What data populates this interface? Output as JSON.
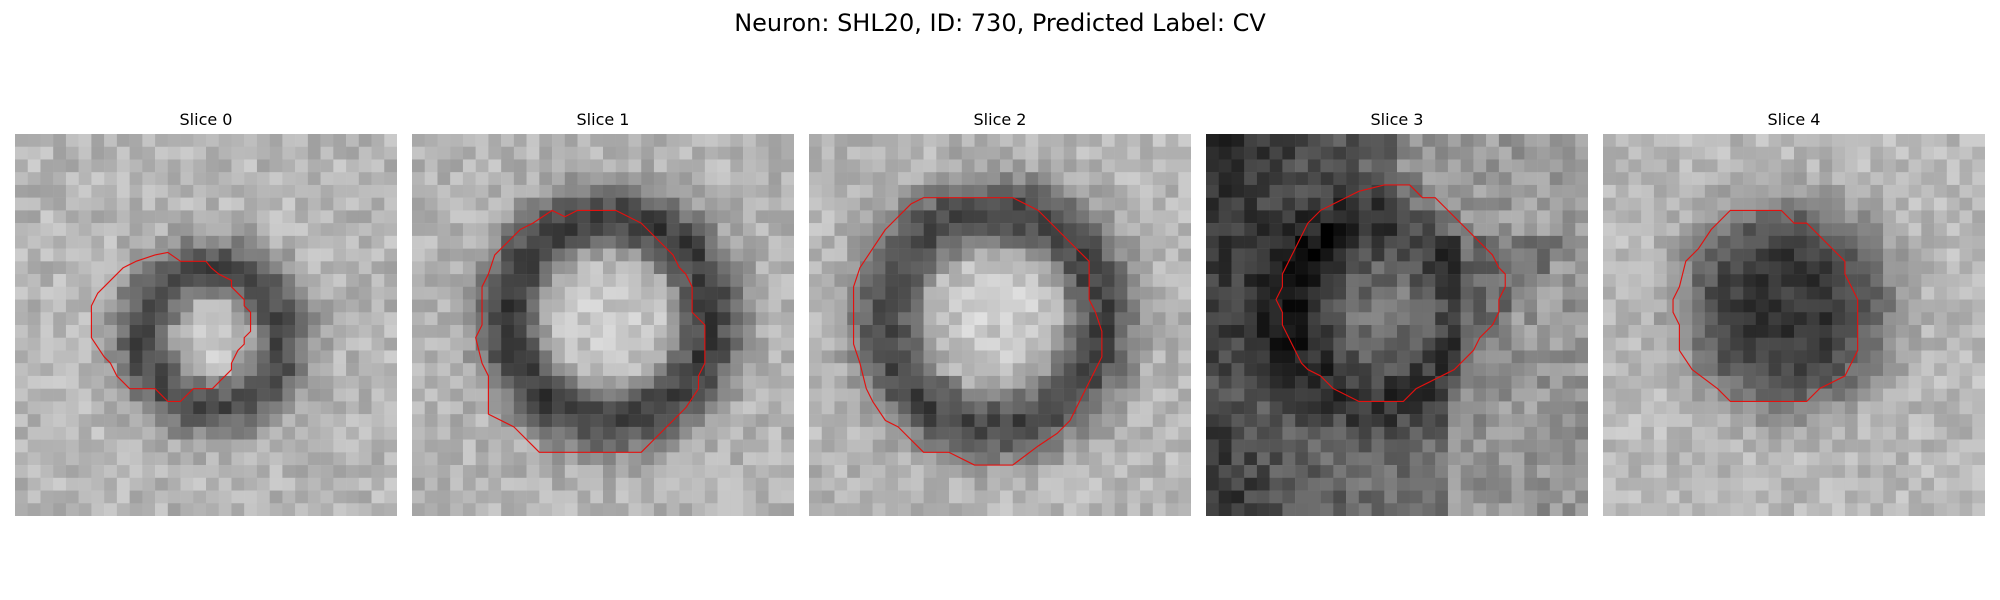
{
  "figure": {
    "title": "Neuron: SHL20, ID: 730, Predicted Label: CV"
  },
  "colors": {
    "contour": "#e3110f",
    "background": "#ffffff"
  },
  "panels": [
    {
      "label": "Slice 0",
      "seed": 11,
      "pattern": "ring",
      "ring_center": [
        15.5,
        16
      ],
      "ring_radius": 5.5,
      "ring_width": 2.4,
      "ring_strength": 110,
      "bg_gray": 182,
      "bg_noise": 48,
      "contour": [
        [
          13,
          10
        ],
        [
          15,
          10
        ],
        [
          15.4,
          10.5
        ],
        [
          16,
          11
        ],
        [
          17,
          11.5
        ],
        [
          17,
          12
        ],
        [
          17.5,
          12.5
        ],
        [
          18,
          13
        ],
        [
          18,
          13.5
        ],
        [
          18.5,
          14
        ],
        [
          18.5,
          15.5
        ],
        [
          18,
          16
        ],
        [
          18,
          16.5
        ],
        [
          17.5,
          17
        ],
        [
          17,
          18
        ],
        [
          17,
          18.5
        ],
        [
          16.5,
          19
        ],
        [
          16,
          19.5
        ],
        [
          15.5,
          20
        ],
        [
          14,
          20
        ],
        [
          13,
          21
        ],
        [
          12,
          21
        ],
        [
          11,
          20
        ],
        [
          9,
          20
        ],
        [
          8,
          19
        ],
        [
          7.5,
          18
        ],
        [
          7,
          17.5
        ],
        [
          6,
          16
        ],
        [
          6,
          15
        ],
        [
          6,
          14
        ],
        [
          6,
          13.5
        ],
        [
          6.5,
          12.5
        ],
        [
          7.5,
          11.5
        ],
        [
          8.5,
          10.5
        ],
        [
          9.5,
          10
        ],
        [
          11,
          9.5
        ],
        [
          12,
          9.3
        ],
        [
          13,
          10
        ]
      ]
    },
    {
      "label": "Slice 1",
      "seed": 23,
      "pattern": "ring",
      "ring_center": [
        15.5,
        14.5
      ],
      "ring_radius": 8.0,
      "ring_width": 2.6,
      "ring_strength": 120,
      "bg_gray": 180,
      "bg_noise": 46,
      "contour": [
        [
          11,
          6
        ],
        [
          12,
          6.5
        ],
        [
          13,
          6
        ],
        [
          15,
          6
        ],
        [
          16,
          6
        ],
        [
          18,
          7
        ],
        [
          19.5,
          8.5
        ],
        [
          20.5,
          9.5
        ],
        [
          21,
          10.5
        ],
        [
          21.5,
          11
        ],
        [
          22,
          12
        ],
        [
          22,
          13
        ],
        [
          22,
          14
        ],
        [
          22.5,
          14.5
        ],
        [
          23,
          15
        ],
        [
          23,
          17
        ],
        [
          23,
          18
        ],
        [
          22.5,
          19
        ],
        [
          22.5,
          20
        ],
        [
          21.5,
          21.5
        ],
        [
          21,
          22
        ],
        [
          19.5,
          23.5
        ],
        [
          18,
          25
        ],
        [
          10,
          25
        ],
        [
          9.5,
          24.5
        ],
        [
          8,
          23
        ],
        [
          6,
          22
        ],
        [
          6,
          20
        ],
        [
          6,
          19
        ],
        [
          5.5,
          18
        ],
        [
          5,
          16
        ],
        [
          5.5,
          15
        ],
        [
          5.5,
          13
        ],
        [
          5.5,
          12
        ],
        [
          6,
          11
        ],
        [
          6.5,
          9.5
        ],
        [
          7.5,
          8.5
        ],
        [
          8.5,
          7.5
        ],
        [
          9.5,
          7
        ],
        [
          11,
          6
        ]
      ]
    },
    {
      "label": "Slice 2",
      "seed": 37,
      "pattern": "ring",
      "ring_center": [
        14.5,
        14.5
      ],
      "ring_radius": 8.5,
      "ring_width": 2.8,
      "ring_strength": 115,
      "bg_gray": 182,
      "bg_noise": 46,
      "contour": [
        [
          9,
          5
        ],
        [
          12,
          5
        ],
        [
          16,
          5
        ],
        [
          18,
          6
        ],
        [
          19.5,
          7.5
        ],
        [
          20.5,
          8.5
        ],
        [
          22,
          10
        ],
        [
          22,
          11
        ],
        [
          22,
          13
        ],
        [
          22.5,
          14
        ],
        [
          23,
          15.5
        ],
        [
          23,
          17.5
        ],
        [
          22.5,
          18.5
        ],
        [
          22,
          19.5
        ],
        [
          21.5,
          20.5
        ],
        [
          21,
          21.5
        ],
        [
          20.5,
          22.5
        ],
        [
          19.5,
          23.5
        ],
        [
          18,
          24.5
        ],
        [
          16,
          26
        ],
        [
          13,
          26
        ],
        [
          11,
          25
        ],
        [
          9,
          25
        ],
        [
          8,
          24
        ],
        [
          7,
          23
        ],
        [
          6,
          22.5
        ],
        [
          5,
          21
        ],
        [
          4.5,
          20
        ],
        [
          4,
          18
        ],
        [
          3.5,
          16.5
        ],
        [
          3.5,
          14
        ],
        [
          3.5,
          12
        ],
        [
          4,
          10.5
        ],
        [
          5,
          9
        ],
        [
          6,
          7.5
        ],
        [
          7,
          6.5
        ],
        [
          8,
          5.5
        ],
        [
          9,
          5
        ]
      ]
    },
    {
      "label": "Slice 3",
      "seed": 53,
      "pattern": "dark-left",
      "ring_center": [
        13.5,
        14
      ],
      "ring_radius": 7.0,
      "ring_width": 3.0,
      "ring_strength": 70,
      "bg_gray": 120,
      "bg_noise": 55,
      "contour": [
        [
          14,
          4
        ],
        [
          16,
          4
        ],
        [
          17,
          5
        ],
        [
          18,
          5
        ],
        [
          19,
          6
        ],
        [
          20,
          7
        ],
        [
          21,
          8
        ],
        [
          22,
          9
        ],
        [
          22.5,
          9.5
        ],
        [
          23,
          10.5
        ],
        [
          23.5,
          11
        ],
        [
          23.5,
          12
        ],
        [
          23,
          13
        ],
        [
          23,
          14
        ],
        [
          22.5,
          15
        ],
        [
          22,
          15.5
        ],
        [
          21.5,
          16
        ],
        [
          21,
          17
        ],
        [
          20,
          18
        ],
        [
          19.5,
          18.5
        ],
        [
          18.5,
          19
        ],
        [
          17.5,
          19.5
        ],
        [
          16.5,
          20
        ],
        [
          15.5,
          21
        ],
        [
          14,
          21
        ],
        [
          12,
          21
        ],
        [
          11,
          20.5
        ],
        [
          10,
          20
        ],
        [
          9,
          19
        ],
        [
          8,
          18.5
        ],
        [
          7.5,
          18
        ],
        [
          7,
          17
        ],
        [
          6.5,
          16
        ],
        [
          6,
          15
        ],
        [
          6,
          14
        ],
        [
          5.5,
          13
        ],
        [
          6,
          12
        ],
        [
          6,
          11
        ],
        [
          6.5,
          10
        ],
        [
          7,
          9
        ],
        [
          7.5,
          8
        ],
        [
          8,
          7
        ],
        [
          9,
          6
        ],
        [
          10,
          5.5
        ],
        [
          11,
          5
        ],
        [
          12,
          4.5
        ],
        [
          14,
          4
        ]
      ]
    },
    {
      "label": "Slice 4",
      "seed": 71,
      "pattern": "disc",
      "ring_center": [
        14.5,
        13.5
      ],
      "ring_radius": 7.5,
      "ring_width": 3.0,
      "ring_strength": 130,
      "bg_gray": 185,
      "bg_noise": 44,
      "contour": [
        [
          10,
          6
        ],
        [
          12,
          6
        ],
        [
          14,
          6
        ],
        [
          15,
          7
        ],
        [
          16,
          7
        ],
        [
          17,
          8
        ],
        [
          18,
          9
        ],
        [
          19,
          10
        ],
        [
          19,
          11
        ],
        [
          19.5,
          12
        ],
        [
          20,
          13
        ],
        [
          20,
          15
        ],
        [
          20,
          17
        ],
        [
          19.5,
          18
        ],
        [
          19,
          19
        ],
        [
          18,
          19.5
        ],
        [
          17,
          20
        ],
        [
          16,
          21
        ],
        [
          14,
          21
        ],
        [
          12,
          21
        ],
        [
          11.5,
          21
        ],
        [
          10,
          21
        ],
        [
          9,
          20
        ],
        [
          7,
          18.5
        ],
        [
          6,
          17
        ],
        [
          6,
          15
        ],
        [
          5.5,
          14
        ],
        [
          5.5,
          13
        ],
        [
          6,
          12
        ],
        [
          6.5,
          10
        ],
        [
          7.5,
          9
        ],
        [
          8.5,
          7.5
        ],
        [
          10,
          6
        ]
      ]
    }
  ]
}
